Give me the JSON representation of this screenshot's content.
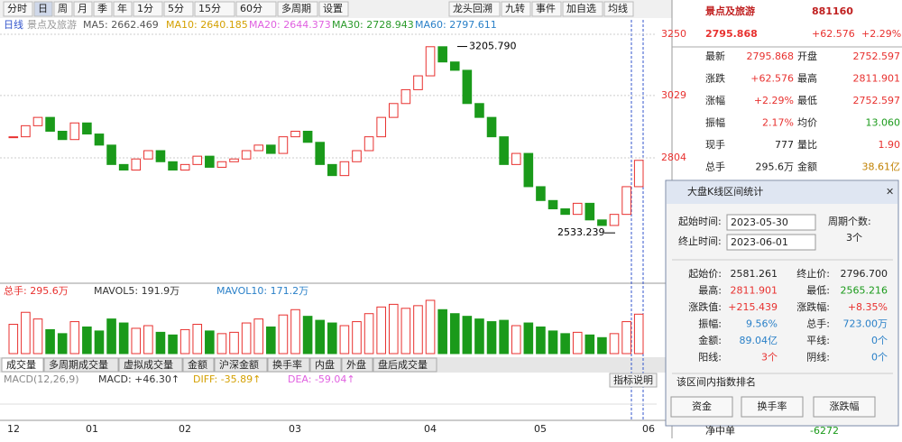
{
  "toolbar": {
    "left": [
      "分时",
      "日",
      "周",
      "月",
      "季",
      "年",
      "1分",
      "5分",
      "15分",
      "60分",
      "多周期",
      "设置"
    ],
    "right": [
      "龙头回溯",
      "九转",
      "事件",
      "加自选",
      "均线"
    ]
  },
  "chart": {
    "period": "日线",
    "name": "景点及旅游",
    "ma": [
      "MA5: 2662.469",
      "MA10: 2640.185",
      "MA20: 2644.373",
      "MA30: 2728.943",
      "MA60: 2797.611"
    ],
    "ylim": [
      2358,
      3302
    ],
    "yticks": [
      3250,
      3029,
      2804
    ],
    "high": {
      "value": 3205.79,
      "label": "3205.790"
    },
    "low": {
      "value": 2533.239,
      "label": "2533.239"
    },
    "closes": [
      2880,
      2920,
      2950,
      2900,
      2870,
      2930,
      2890,
      2850,
      2780,
      2760,
      2800,
      2830,
      2790,
      2760,
      2780,
      2810,
      2770,
      2790,
      2800,
      2830,
      2850,
      2820,
      2880,
      2900,
      2860,
      2780,
      2740,
      2790,
      2830,
      2880,
      2950,
      3000,
      3050,
      3100,
      3205,
      3150,
      3120,
      3000,
      2950,
      2880,
      2780,
      2820,
      2700,
      2650,
      2620,
      2600,
      2640,
      2580,
      2560,
      2600,
      2700,
      2795
    ]
  },
  "volume": {
    "header": [
      "总手: 295.6万",
      "MAVOL5: 191.9万",
      "MAVOL10: 171.2万"
    ],
    "ylim": [
      0,
      420
    ],
    "values": [
      220,
      310,
      260,
      180,
      150,
      240,
      200,
      170,
      260,
      230,
      190,
      210,
      160,
      140,
      180,
      220,
      170,
      150,
      160,
      230,
      260,
      200,
      290,
      330,
      280,
      250,
      230,
      210,
      240,
      300,
      350,
      370,
      340,
      360,
      400,
      330,
      300,
      280,
      260,
      240,
      250,
      210,
      230,
      200,
      170,
      150,
      160,
      140,
      120,
      150,
      240,
      296
    ]
  },
  "tabs": [
    "成交量",
    "多周期成交量",
    "虚拟成交量",
    "金额",
    "沪深金额",
    "换手率",
    "内盘",
    "外盘",
    "盘后成交量"
  ],
  "indicator_help": "指标说明",
  "macd": [
    "MACD(12,26,9)",
    "MACD: +46.30↑",
    "DIFF: -35.89↑",
    "DEA: -59.04↑"
  ],
  "x_labels": [
    "12",
    "01",
    "02",
    "03",
    "04",
    "05",
    "06"
  ],
  "quote": {
    "name": "景点及旅游",
    "code": "881160",
    "price": "2795.868",
    "change": "+62.576",
    "pct": "+2.29%",
    "rows": [
      [
        "最新",
        "2795.868",
        "开盘",
        "2752.597"
      ],
      [
        "涨跌",
        "+62.576",
        "最高",
        "2811.901"
      ],
      [
        "涨幅",
        "+2.29%",
        "最低",
        "2752.597"
      ],
      [
        "振幅",
        "2.17%",
        "均价",
        "13.060"
      ],
      [
        "现手",
        "777",
        "量比",
        "1.90"
      ],
      [
        "总手",
        "295.6万",
        "金额",
        "38.61亿"
      ]
    ]
  },
  "dialog": {
    "title": "大盘K线区间统计",
    "start_label": "起始时间:",
    "start": "2023-05-30",
    "end_label": "终止时间:",
    "end": "2023-06-01",
    "count_label": "周期个数:",
    "count": "3个",
    "stats": [
      [
        "起始价:",
        "2581.261",
        "终止价:",
        "2796.700"
      ],
      [
        "最高:",
        "2811.901",
        "最低:",
        "2565.216"
      ],
      [
        "涨跌值:",
        "+215.439",
        "涨跌幅:",
        "+8.35%"
      ],
      [
        "振幅:",
        "9.56%",
        "总手:",
        "723.00万"
      ],
      [
        "金额:",
        "89.04亿",
        "平线:",
        "0个"
      ],
      [
        "阳线:",
        "3个",
        "阴线:",
        "0个"
      ]
    ],
    "rank_title": "该区间内指数排名",
    "buttons": [
      "资金",
      "换手率",
      "涨跌幅"
    ]
  },
  "footer": {
    "label": "净中单",
    "value": "-6272"
  }
}
